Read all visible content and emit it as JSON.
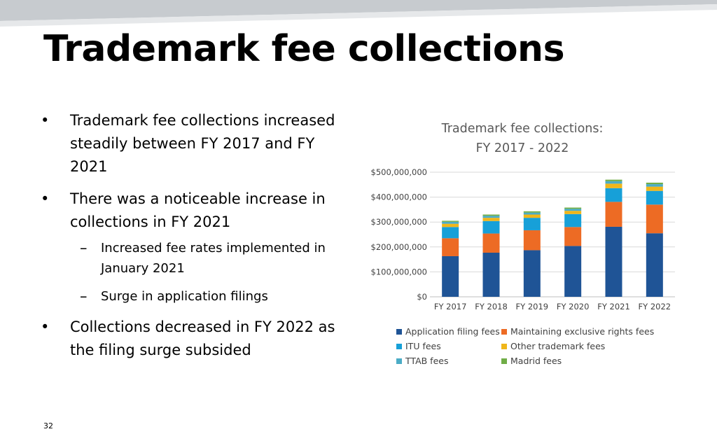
{
  "slide": {
    "title": "Trademark fee collections",
    "page_number": "32",
    "bullets": [
      {
        "text": "Trademark fee collections increased steadily between FY 2017 and FY 2021"
      },
      {
        "text": "There was a noticeable increase in collections in FY 2021",
        "sub": [
          "Increased fee rates implemented in January 2021",
          "Surge in application filings"
        ]
      },
      {
        "text": "Collections decreased in FY 2022 as the filing surge subsided"
      }
    ],
    "bullet_mark": "•",
    "sub_mark": "–"
  },
  "chart_data": {
    "type": "bar",
    "stacked": true,
    "title": "Trademark fee collections:",
    "subtitle": "FY 2017 - 2022",
    "categories": [
      "FY 2017",
      "FY 2018",
      "FY 2019",
      "FY 2020",
      "FY 2021",
      "FY 2022"
    ],
    "ylim": [
      0,
      500000000
    ],
    "yticks": [
      0,
      100000000,
      200000000,
      300000000,
      400000000,
      500000000
    ],
    "ytick_labels": [
      "$0",
      "$100,000,000",
      "$200,000,000",
      "$300,000,000",
      "$400,000,000",
      "$500,000,000"
    ],
    "grid": true,
    "legend_position": "bottom",
    "series": [
      {
        "name": "Application filing fees",
        "color": "#1f5496",
        "values": [
          163000000,
          177000000,
          187000000,
          204000000,
          281000000,
          255000000
        ]
      },
      {
        "name": "Maintaining exclusive rights fees",
        "color": "#ed6b24",
        "values": [
          72000000,
          77000000,
          80000000,
          76000000,
          100000000,
          115000000
        ]
      },
      {
        "name": "ITU fees",
        "color": "#17a0d8",
        "values": [
          45000000,
          50000000,
          50000000,
          52000000,
          55000000,
          55000000
        ]
      },
      {
        "name": "Other trademark fees",
        "color": "#f0b61a",
        "values": [
          13000000,
          13000000,
          13000000,
          13000000,
          18000000,
          17000000
        ]
      },
      {
        "name": "TTAB fees",
        "color": "#4bacc6",
        "values": [
          8000000,
          8000000,
          8000000,
          8000000,
          10000000,
          10000000
        ]
      },
      {
        "name": "Madrid fees",
        "color": "#70ad47",
        "values": [
          4000000,
          5000000,
          5000000,
          5000000,
          6000000,
          6000000
        ]
      }
    ]
  }
}
